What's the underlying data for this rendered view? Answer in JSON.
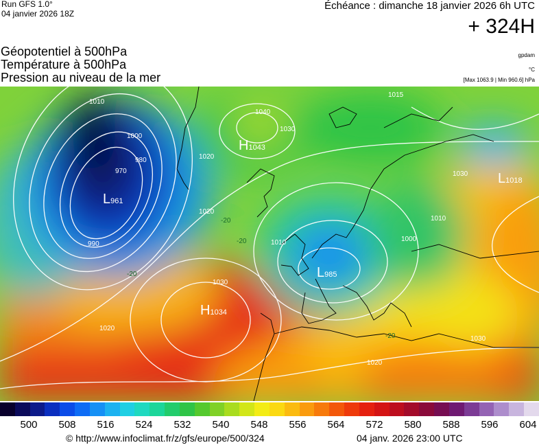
{
  "header": {
    "run": "Run GFS 1.0°",
    "run_date": "04 janvier 2026 18Z",
    "echeance": "Échéance : dimanche 18 janvier 2026 6h UTC",
    "lead": "+ 324H"
  },
  "titles": [
    "Géopotentiel à 500hPa",
    "Température à 500hPa",
    "Pression au niveau de la mer"
  ],
  "units": {
    "geopotential": "gpdam",
    "temperature": "°C",
    "pressure": "[Max 1063.9 | Min 960.6] hPa"
  },
  "systems": [
    {
      "type": "L",
      "value": "961"
    },
    {
      "type": "H",
      "value": "1034"
    },
    {
      "type": "L",
      "value": "985"
    },
    {
      "type": "H",
      "value": "1043"
    },
    {
      "type": "L",
      "value": "1018"
    }
  ],
  "isobar_labels": [
    "1010",
    "1000",
    "990",
    "980",
    "970",
    "1020",
    "1030",
    "1040",
    "1015",
    "1010",
    "1000",
    "1020",
    "1020",
    "1030",
    "1030",
    "1010",
    "1020",
    "1030"
  ],
  "isotherm_labels": [
    "-20",
    "-20",
    "-20",
    "-20"
  ],
  "scale": {
    "ticks": [
      "500",
      "508",
      "516",
      "524",
      "532",
      "540",
      "548",
      "556",
      "564",
      "572",
      "580",
      "588",
      "596",
      "604"
    ],
    "colors": [
      "#08002c",
      "#0b0a5a",
      "#0c1a8a",
      "#0a2fbf",
      "#0b4ce8",
      "#0e6cf5",
      "#1590f5",
      "#1cb2f0",
      "#20cfe3",
      "#1fd9c0",
      "#1cd69a",
      "#22cc6c",
      "#2fc447",
      "#55c92e",
      "#80d126",
      "#a9dc1e",
      "#d2e618",
      "#f3ec15",
      "#fbd912",
      "#fbbb10",
      "#fa9b0e",
      "#f77a0b",
      "#f3580a",
      "#ee3a0b",
      "#e5200f",
      "#d41414",
      "#bd0e1e",
      "#a30b2a",
      "#8a0a3a",
      "#760d52",
      "#6f1a72",
      "#7c3b95",
      "#9463b4",
      "#ad8dcc",
      "#c8b5de",
      "#e3d9ec"
    ]
  },
  "footer": {
    "url": "© http://www.infoclimat.fr/z/gfs/europe/500/324",
    "generated": "04 janv. 2026 23:00 UTC"
  }
}
